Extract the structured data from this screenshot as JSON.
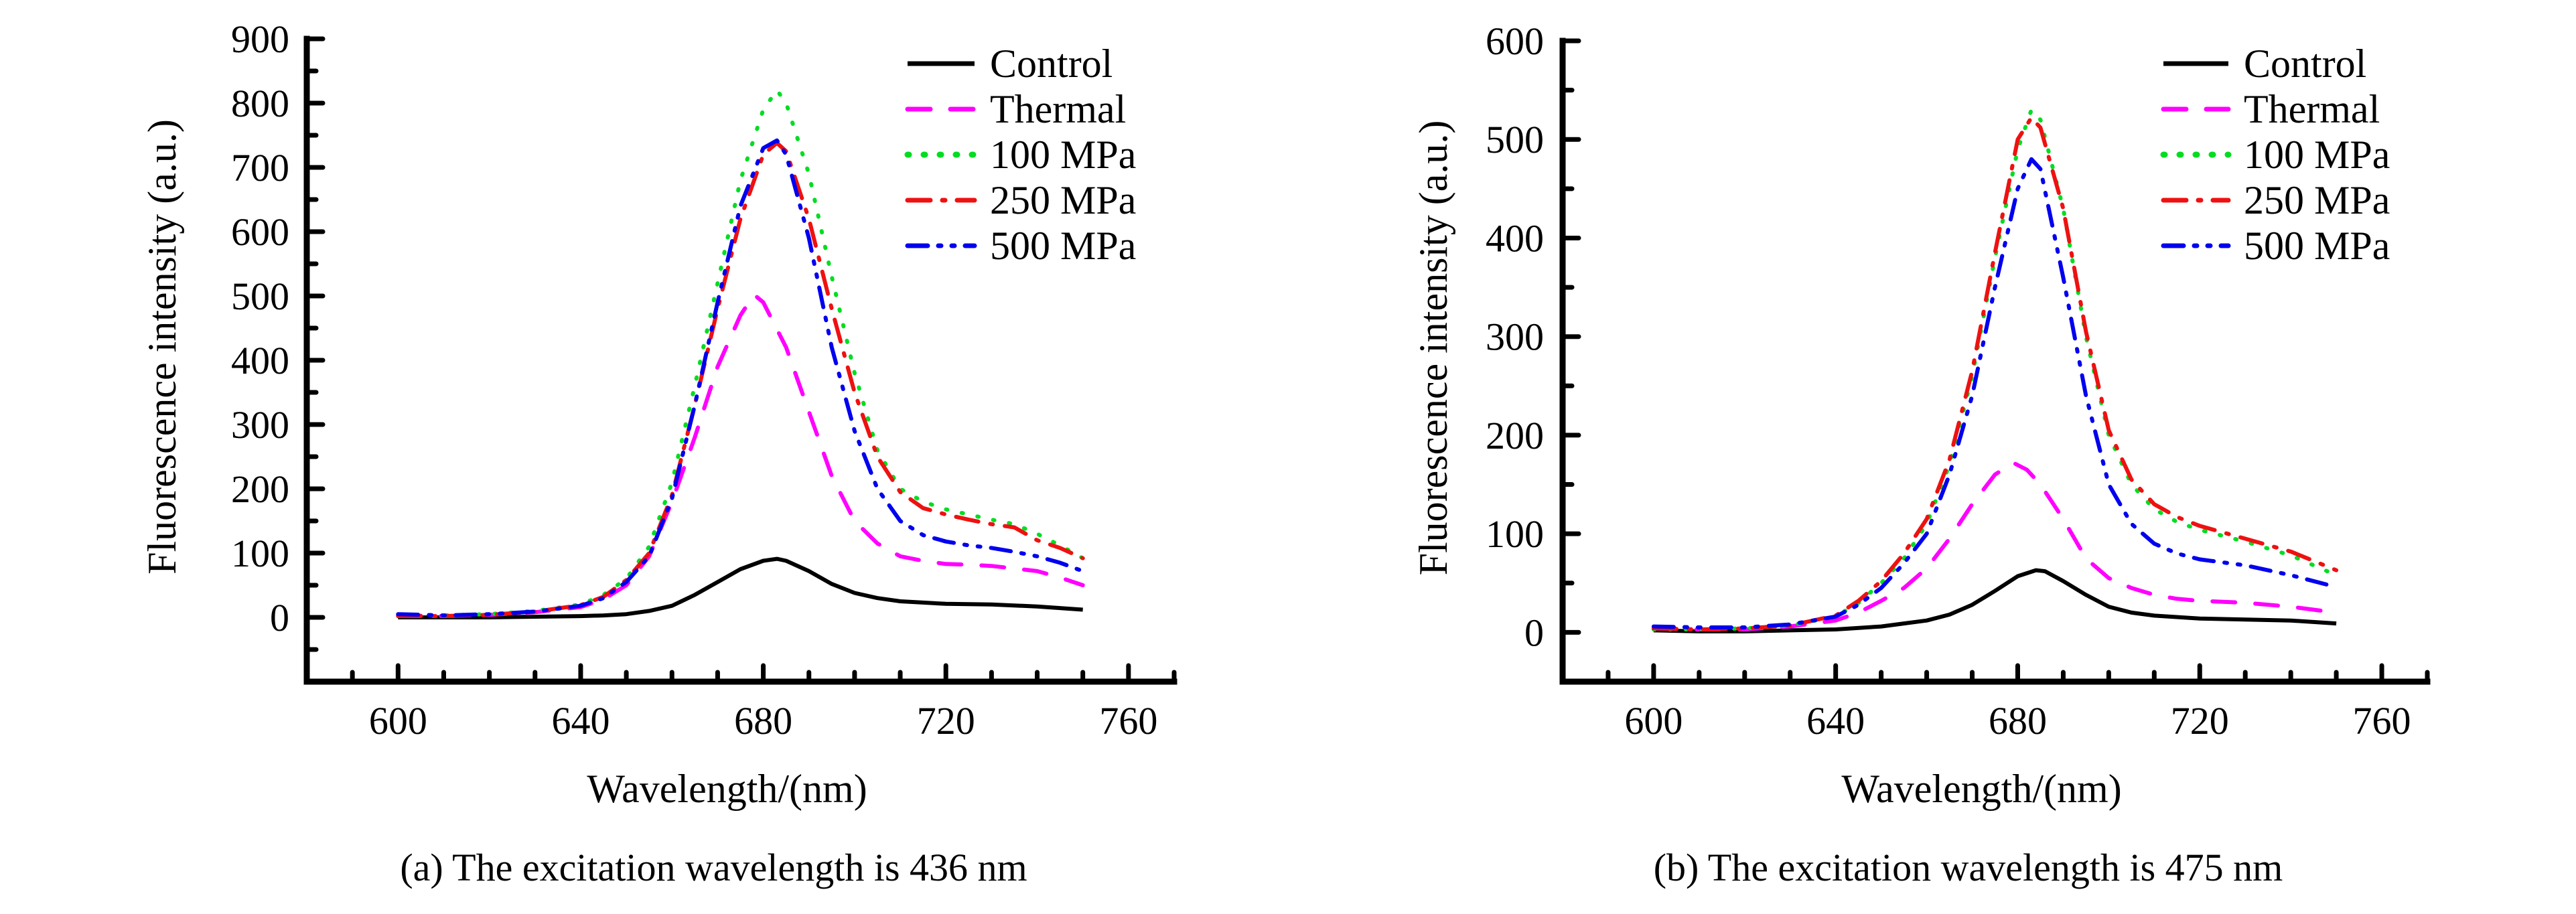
{
  "chart_data": [
    {
      "id": "a",
      "type": "line",
      "title": "",
      "caption": "(a) The excitation wavelength is 436 nm",
      "xlabel": "Wavelength/(nm)",
      "ylabel": "Fluorescence intensity (a.u.)",
      "xlim": [
        580,
        770
      ],
      "ylim": [
        -100,
        900
      ],
      "xticks": [
        600,
        640,
        680,
        720,
        760
      ],
      "xticks_minor": [
        590,
        610,
        620,
        630,
        650,
        660,
        670,
        690,
        700,
        710,
        730,
        740,
        750,
        770
      ],
      "yticks": [
        0,
        100,
        200,
        300,
        400,
        500,
        600,
        700,
        800,
        900
      ],
      "yticks_minor": [
        -50,
        50,
        150,
        250,
        350,
        450,
        550,
        650,
        750,
        850
      ],
      "grid": false,
      "legend_position": "top-right",
      "series": [
        {
          "name": "Control",
          "color": "#000000",
          "dash": "solid",
          "x": [
            600,
            610,
            620,
            630,
            640,
            645,
            650,
            655,
            660,
            665,
            670,
            675,
            680,
            683,
            685,
            690,
            695,
            700,
            705,
            710,
            715,
            720,
            730,
            740,
            750
          ],
          "y": [
            0,
            0,
            0,
            1,
            2,
            3,
            5,
            10,
            18,
            35,
            55,
            75,
            88,
            91,
            88,
            72,
            52,
            38,
            30,
            25,
            23,
            21,
            20,
            17,
            12
          ]
        },
        {
          "name": "Thermal",
          "color": "#ff00ff",
          "dash": "dash",
          "x": [
            600,
            610,
            620,
            630,
            640,
            645,
            650,
            655,
            660,
            665,
            670,
            675,
            678,
            680,
            685,
            690,
            695,
            700,
            705,
            710,
            715,
            720,
            725,
            730,
            735,
            740,
            745,
            750
          ],
          "y": [
            3,
            2,
            4,
            8,
            16,
            28,
            50,
            95,
            180,
            280,
            390,
            470,
            502,
            490,
            420,
            320,
            220,
            150,
            115,
            95,
            88,
            83,
            82,
            80,
            76,
            72,
            62,
            50
          ]
        },
        {
          "name": "100 MPa",
          "color": "#00dd22",
          "dash": "dot",
          "x": [
            600,
            610,
            620,
            630,
            640,
            645,
            650,
            655,
            660,
            665,
            670,
            675,
            680,
            683,
            685,
            690,
            695,
            700,
            705,
            710,
            715,
            720,
            725,
            730,
            735,
            740,
            745,
            750
          ],
          "y": [
            4,
            3,
            5,
            10,
            20,
            35,
            60,
            110,
            210,
            360,
            520,
            680,
            790,
            820,
            800,
            690,
            530,
            380,
            260,
            200,
            180,
            168,
            160,
            152,
            145,
            130,
            112,
            92
          ]
        },
        {
          "name": "250 MPa",
          "color": "#ee1111",
          "dash": "dashdot",
          "x": [
            600,
            610,
            620,
            630,
            640,
            645,
            650,
            655,
            660,
            665,
            670,
            675,
            680,
            683,
            685,
            690,
            695,
            700,
            705,
            710,
            715,
            720,
            725,
            730,
            735,
            740,
            745,
            750
          ],
          "y": [
            2,
            2,
            4,
            9,
            19,
            32,
            58,
            100,
            190,
            330,
            480,
            620,
            720,
            738,
            725,
            620,
            480,
            350,
            250,
            195,
            170,
            160,
            152,
            145,
            140,
            120,
            108,
            92
          ]
        },
        {
          "name": "500 MPa",
          "color": "#0000ee",
          "dash": "dashdotdot",
          "x": [
            600,
            610,
            620,
            630,
            640,
            645,
            650,
            655,
            660,
            665,
            670,
            675,
            680,
            683,
            685,
            690,
            695,
            700,
            705,
            710,
            715,
            720,
            725,
            730,
            735,
            740,
            745,
            750
          ],
          "y": [
            5,
            3,
            5,
            9,
            18,
            30,
            55,
            95,
            185,
            330,
            490,
            640,
            730,
            742,
            720,
            590,
            420,
            290,
            200,
            150,
            128,
            118,
            112,
            108,
            102,
            95,
            85,
            72
          ]
        }
      ]
    },
    {
      "id": "b",
      "type": "line",
      "title": "",
      "caption": "(b) The excitation wavelength is 475 nm",
      "xlabel": "Wavelength/(nm)",
      "ylabel": "Fluorescence intensity (a.u.)",
      "xlim": [
        580,
        770
      ],
      "ylim": [
        -50,
        600
      ],
      "xticks": [
        600,
        640,
        680,
        720,
        760
      ],
      "xticks_minor": [
        590,
        610,
        620,
        630,
        650,
        660,
        670,
        690,
        700,
        710,
        730,
        740,
        750,
        770
      ],
      "yticks": [
        0,
        100,
        200,
        300,
        400,
        500,
        600
      ],
      "yticks_minor": [
        50,
        150,
        250,
        350,
        450,
        550
      ],
      "grid": false,
      "legend_position": "top-right",
      "series": [
        {
          "name": "Control",
          "color": "#000000",
          "dash": "solid",
          "x": [
            600,
            610,
            620,
            630,
            640,
            650,
            655,
            660,
            665,
            670,
            675,
            680,
            684,
            686,
            690,
            695,
            700,
            705,
            710,
            720,
            730,
            740,
            750
          ],
          "y": [
            2,
            1,
            1,
            2,
            3,
            6,
            9,
            12,
            18,
            28,
            42,
            57,
            63,
            62,
            52,
            38,
            26,
            20,
            17,
            14,
            13,
            12,
            9
          ]
        },
        {
          "name": "Thermal",
          "color": "#ff00ff",
          "dash": "dash",
          "x": [
            600,
            610,
            620,
            630,
            640,
            645,
            650,
            655,
            660,
            665,
            670,
            675,
            679,
            682,
            685,
            690,
            695,
            700,
            705,
            710,
            715,
            720,
            730,
            740,
            750
          ],
          "y": [
            4,
            3,
            3,
            6,
            12,
            20,
            32,
            45,
            65,
            95,
            130,
            160,
            172,
            165,
            150,
            115,
            75,
            55,
            45,
            38,
            34,
            32,
            30,
            26,
            20
          ]
        },
        {
          "name": "100 MPa",
          "color": "#00dd22",
          "dash": "dot",
          "x": [
            600,
            610,
            620,
            630,
            640,
            645,
            650,
            655,
            660,
            665,
            670,
            675,
            680,
            683,
            685,
            690,
            695,
            700,
            705,
            710,
            715,
            720,
            730,
            740,
            750
          ],
          "y": [
            3,
            3,
            4,
            7,
            16,
            30,
            50,
            75,
            110,
            170,
            260,
            380,
            490,
            530,
            520,
            430,
            300,
            200,
            150,
            125,
            112,
            104,
            92,
            78,
            58
          ]
        },
        {
          "name": "250 MPa",
          "color": "#ee1111",
          "dash": "dashdot",
          "x": [
            600,
            610,
            620,
            630,
            640,
            645,
            650,
            655,
            660,
            665,
            670,
            675,
            680,
            683,
            685,
            690,
            695,
            700,
            705,
            710,
            715,
            720,
            730,
            740,
            750
          ],
          "y": [
            4,
            3,
            4,
            7,
            17,
            32,
            52,
            80,
            115,
            175,
            265,
            385,
            500,
            522,
            512,
            430,
            305,
            205,
            155,
            130,
            117,
            108,
            95,
            82,
            63
          ]
        },
        {
          "name": "500 MPa",
          "color": "#0000ee",
          "dash": "dashdotdot",
          "x": [
            600,
            610,
            620,
            630,
            640,
            645,
            650,
            655,
            660,
            665,
            670,
            675,
            680,
            683,
            685,
            690,
            695,
            700,
            705,
            710,
            715,
            720,
            730,
            740,
            750
          ],
          "y": [
            6,
            5,
            5,
            8,
            16,
            28,
            45,
            70,
            100,
            160,
            240,
            350,
            450,
            480,
            470,
            360,
            240,
            150,
            110,
            90,
            80,
            74,
            68,
            58,
            46
          ]
        }
      ]
    }
  ]
}
